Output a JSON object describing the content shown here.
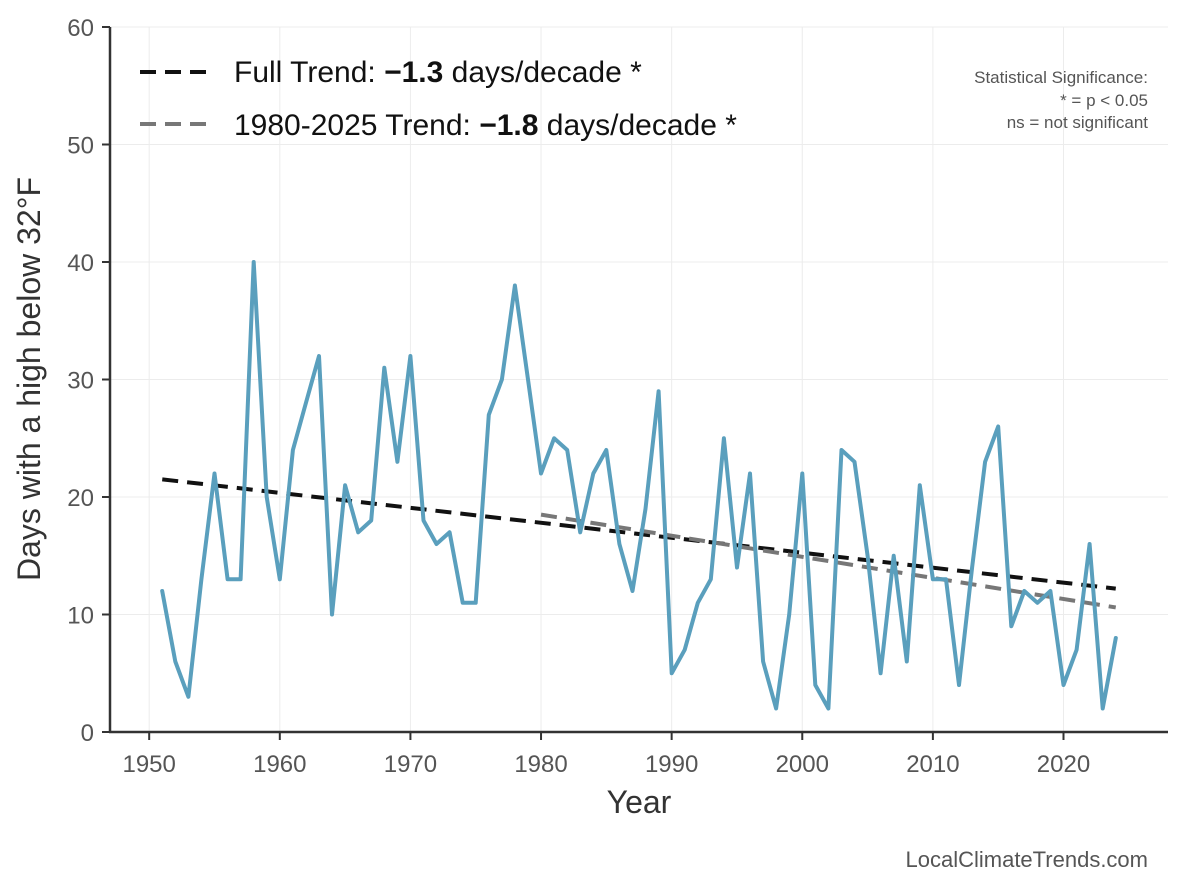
{
  "chart_data": {
    "type": "line",
    "xlabel": "Year",
    "ylabel": "Days with a high below 32°F",
    "xlim": [
      1947,
      2028
    ],
    "ylim": [
      0,
      60
    ],
    "x_ticks": [
      1950,
      1960,
      1970,
      1980,
      1990,
      2000,
      2010,
      2020
    ],
    "y_ticks": [
      0,
      10,
      20,
      30,
      40,
      50,
      60
    ],
    "grid": true,
    "series": [
      {
        "color": "#5a9fbd",
        "x": [
          1951,
          1952,
          1953,
          1954,
          1955,
          1956,
          1957,
          1958,
          1959,
          1960,
          1961,
          1962,
          1963,
          1964,
          1965,
          1966,
          1967,
          1968,
          1969,
          1970,
          1971,
          1972,
          1973,
          1974,
          1975,
          1976,
          1977,
          1978,
          1979,
          1980,
          1981,
          1982,
          1983,
          1984,
          1985,
          1986,
          1987,
          1988,
          1989,
          1990,
          1991,
          1992,
          1993,
          1994,
          1995,
          1996,
          1997,
          1998,
          1999,
          2000,
          2001,
          2002,
          2003,
          2004,
          2005,
          2006,
          2007,
          2008,
          2009,
          2010,
          2011,
          2012,
          2013,
          2014,
          2015,
          2016,
          2017,
          2018,
          2019,
          2020,
          2021,
          2022,
          2023,
          2024
        ],
        "values": [
          12,
          6,
          3,
          13,
          22,
          13,
          13,
          40,
          20,
          13,
          24,
          28,
          32,
          10,
          21,
          17,
          18,
          31,
          23,
          32,
          18,
          16,
          17,
          11,
          11,
          27,
          30,
          38,
          30,
          22,
          25,
          24,
          17,
          22,
          24,
          16,
          12,
          19,
          29,
          5,
          7,
          11,
          13,
          25,
          14,
          22,
          6,
          2,
          10,
          22,
          4,
          2,
          24,
          23,
          15,
          5,
          15,
          6,
          21,
          13,
          13,
          4,
          14,
          23,
          26,
          9,
          12,
          11,
          12,
          4,
          7,
          16,
          2,
          8
        ]
      }
    ],
    "trends": [
      {
        "name": "Full Trend",
        "color": "#111111",
        "x": [
          1951,
          2024
        ],
        "values": [
          21.5,
          12.2
        ]
      },
      {
        "name": "1980-2025 Trend",
        "color": "#777777",
        "x": [
          1980,
          2024
        ],
        "values": [
          18.5,
          10.6
        ]
      }
    ],
    "legend": {
      "placement": "top-left",
      "entries": [
        {
          "prefix": "Full Trend: ",
          "value": "−1.3",
          "suffix": " days/decade *",
          "color": "#111111"
        },
        {
          "prefix": "1980-2025 Trend: ",
          "value": "−1.8",
          "suffix": " days/decade *",
          "color": "#777777"
        }
      ]
    },
    "annotation": [
      "Statistical Significance:",
      "* = p < 0.05",
      "ns = not significant"
    ],
    "credit": "LocalClimateTrends.com"
  }
}
